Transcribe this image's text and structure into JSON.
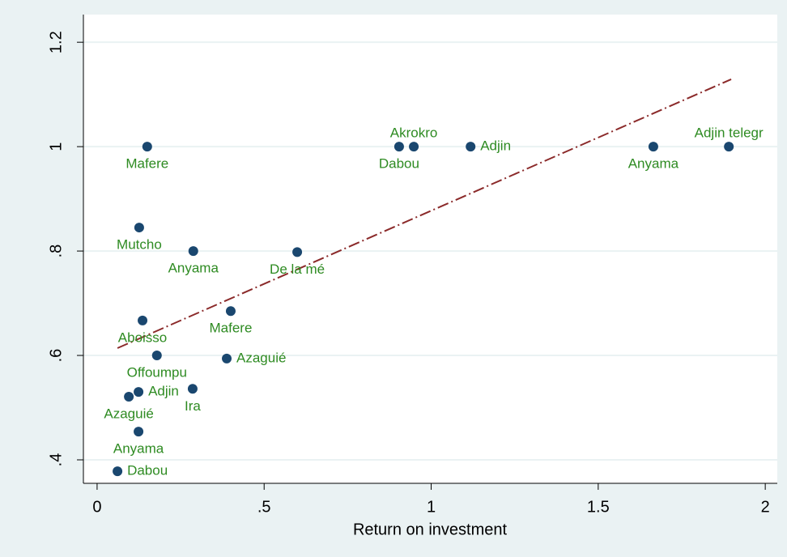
{
  "chart_data": {
    "type": "scatter",
    "x_label": "Return on investment",
    "xlim": [
      -0.041,
      2.036
    ],
    "ylim": [
      0.355,
      1.253
    ],
    "xticks": [
      0,
      {
        "value": 0.5,
        "label": ".5"
      },
      1,
      {
        "value": 1.5,
        "label": "1.5"
      },
      2
    ],
    "yticks": [
      {
        "value": 0.4,
        "label": ".4"
      },
      {
        "value": 0.6,
        "label": ".6"
      },
      {
        "value": 0.8,
        "label": ".8"
      },
      1,
      {
        "value": 1.2,
        "label": "1.2"
      }
    ],
    "grid": true,
    "series": [
      {
        "color": "#1a476f",
        "label_color": "#2e8b22",
        "x": [
          0.15,
          0.126,
          0.288,
          0.599,
          0.136,
          0.4,
          0.179,
          0.388,
          0.124,
          0.286,
          0.095,
          0.124,
          0.061,
          0.948,
          0.904,
          1.118,
          1.665,
          1.891
        ],
        "values": [
          1.0,
          0.845,
          0.8,
          0.798,
          0.667,
          0.685,
          0.6,
          0.594,
          0.53,
          0.536,
          0.521,
          0.454,
          0.378,
          1.0,
          1.0,
          1.0,
          1.0,
          1.0
        ],
        "labels": [
          "Mafere",
          "Mutcho",
          "Anyama",
          "De la mé",
          "Aboisso",
          "Mafere",
          "Offoumpu",
          "Azaguié",
          "Adjin",
          "Ira",
          "Azaguié",
          "Anyama",
          "Dabou",
          "Akrokro",
          "Dabou",
          "Adjin",
          "Anyama",
          "Adjin telegr"
        ],
        "label_positions": [
          "below",
          "below",
          "below",
          "below",
          "below",
          "below",
          "below",
          "right",
          "right",
          "below",
          "below",
          "below",
          "right",
          "above",
          "below",
          "right",
          "below",
          "above"
        ]
      }
    ],
    "fit_line": {
      "color": "#8b2a2a",
      "x": [
        0.061,
        1.898
      ],
      "values": [
        0.614,
        1.129
      ]
    }
  }
}
